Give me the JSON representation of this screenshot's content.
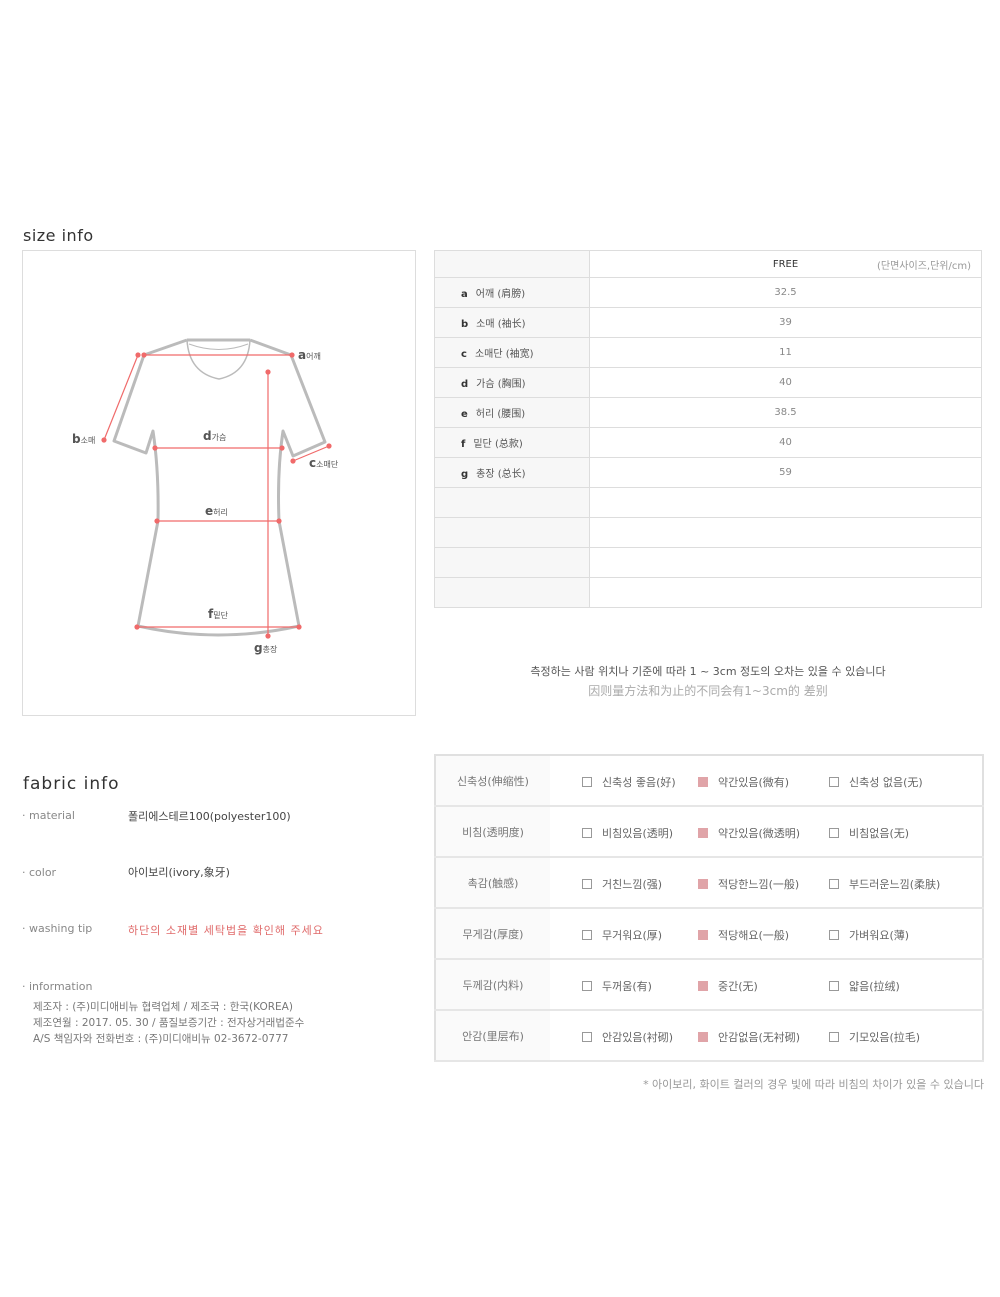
{
  "size_info": {
    "title": "size info",
    "diagram_labels": [
      {
        "letter": "a",
        "name": "어깨"
      },
      {
        "letter": "b",
        "name": "소매"
      },
      {
        "letter": "c",
        "name": "소매단"
      },
      {
        "letter": "d",
        "name": "가슴"
      },
      {
        "letter": "e",
        "name": "허리"
      },
      {
        "letter": "f",
        "name": "밑단"
      },
      {
        "letter": "g",
        "name": "총장"
      }
    ],
    "table": {
      "size_header": "FREE",
      "unit_note": "(단면사이즈,단위/cm)",
      "rows": [
        {
          "letter": "a",
          "label": "어깨 (肩膀)",
          "value": "32.5"
        },
        {
          "letter": "b",
          "label": "소매 (袖长)",
          "value": "39"
        },
        {
          "letter": "c",
          "label": "소매단 (袖宽)",
          "value": "11"
        },
        {
          "letter": "d",
          "label": "가슴 (胸围)",
          "value": "40"
        },
        {
          "letter": "e",
          "label": "허리 (腰围)",
          "value": "38.5"
        },
        {
          "letter": "f",
          "label": "밑단 (总款)",
          "value": "40"
        },
        {
          "letter": "g",
          "label": "총장 (总长)",
          "value": "59"
        }
      ]
    },
    "note_ko": "측정하는 사람 위치나 기준에 따라 1 ~ 3cm 정도의 오차는 있을 수 있습니다",
    "note_cn": "因则量方法和为止的不同会有1~3cm的 差别"
  },
  "fabric_info": {
    "title": "fabric info",
    "material_label": "· material",
    "material": "폴리에스테르100(polyester100)",
    "color_label": "· color",
    "color": "아이보리(ivory,象牙)",
    "washing_label": "· washing tip",
    "washing": "하단의 소재별 세탁법을 확인해 주세요",
    "information_label": "· information",
    "information_lines": [
      "제조자 : (주)미디애비뉴 협력업체  /  제조국 : 한국(KOREA)",
      "제조연월 :  2017. 05. 30  /  품질보증기간 :  전자상거래법준수",
      "A/S 책임자와 전화번호 : (주)미디애비뉴 02-3672-0777"
    ],
    "accent_color": "#e06b6b",
    "selected_color": "#e0a4a8",
    "properties": [
      {
        "label": "신축성(伸缩性)",
        "options": [
          "신축성 좋음(好)",
          "약간있음(微有)",
          "신축성 없음(无)"
        ],
        "selected": 1
      },
      {
        "label": "비침(透明度)",
        "options": [
          "비침있음(透明)",
          "약간있음(微透明)",
          "비침없음(无)"
        ],
        "selected": 1
      },
      {
        "label": "촉감(触感)",
        "options": [
          "거친느낌(强)",
          "적당한느낌(一般)",
          "부드러운느낌(柔肤)"
        ],
        "selected": 1
      },
      {
        "label": "무게감(厚度)",
        "options": [
          "무거워요(厚)",
          "적당해요(一般)",
          "가벼워요(薄)"
        ],
        "selected": 1
      },
      {
        "label": "두께감(内料)",
        "options": [
          "두꺼움(有)",
          "중간(无)",
          "얇음(拉绒)"
        ],
        "selected": 1
      },
      {
        "label": "안감(里层布)",
        "options": [
          "안감있음(衬砌)",
          "안감없음(无衬砌)",
          "기모있음(拉毛)"
        ],
        "selected": 1
      }
    ],
    "footnote": "* 아이보리, 화이트 컬러의 경우 빛에 따라 비침의 차이가 있을 수 있습니다"
  }
}
